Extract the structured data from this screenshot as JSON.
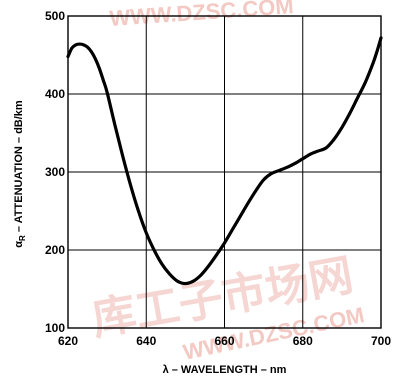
{
  "chart_data": {
    "type": "line",
    "title": "",
    "xlabel": "λ – WAVELENGTH – nm",
    "ylabel": "αR – ATTENUATION – dB/km",
    "ylabel_main": "α",
    "ylabel_subscript": "R",
    "ylabel_rest": " – ATTENUATION – dB/km",
    "xlim": [
      620,
      700
    ],
    "ylim": [
      100,
      500
    ],
    "x_ticks": [
      620,
      640,
      660,
      680,
      700
    ],
    "y_ticks": [
      100,
      200,
      300,
      400,
      500
    ],
    "grid": true,
    "series": [
      {
        "x": [
          620,
          621,
          622,
          623,
          624,
          625,
          626,
          627,
          628,
          629,
          630,
          632,
          634,
          636,
          638,
          640,
          642,
          644,
          646,
          648,
          650,
          652,
          654,
          656,
          658,
          660,
          662,
          664,
          666,
          668,
          670,
          672,
          674,
          676,
          678,
          680,
          682,
          684,
          686,
          688,
          690,
          692,
          694,
          696,
          698,
          699,
          700
        ],
        "y": [
          448,
          459,
          463,
          464,
          463,
          460,
          454,
          445,
          433,
          418,
          402,
          360,
          320,
          283,
          250,
          222,
          200,
          182,
          169,
          160,
          157,
          160,
          168,
          180,
          194,
          209,
          226,
          243,
          260,
          276,
          290,
          298,
          302,
          306,
          311,
          317,
          323,
          327,
          331,
          342,
          357,
          375,
          395,
          415,
          440,
          455,
          472
        ]
      }
    ]
  },
  "watermark": {
    "top_text": "WWW.DZSC.COM",
    "bottom_text": "WWW.DZSC.COM",
    "chinese_text": "库工子市场网",
    "color": "#f3c9c3"
  }
}
